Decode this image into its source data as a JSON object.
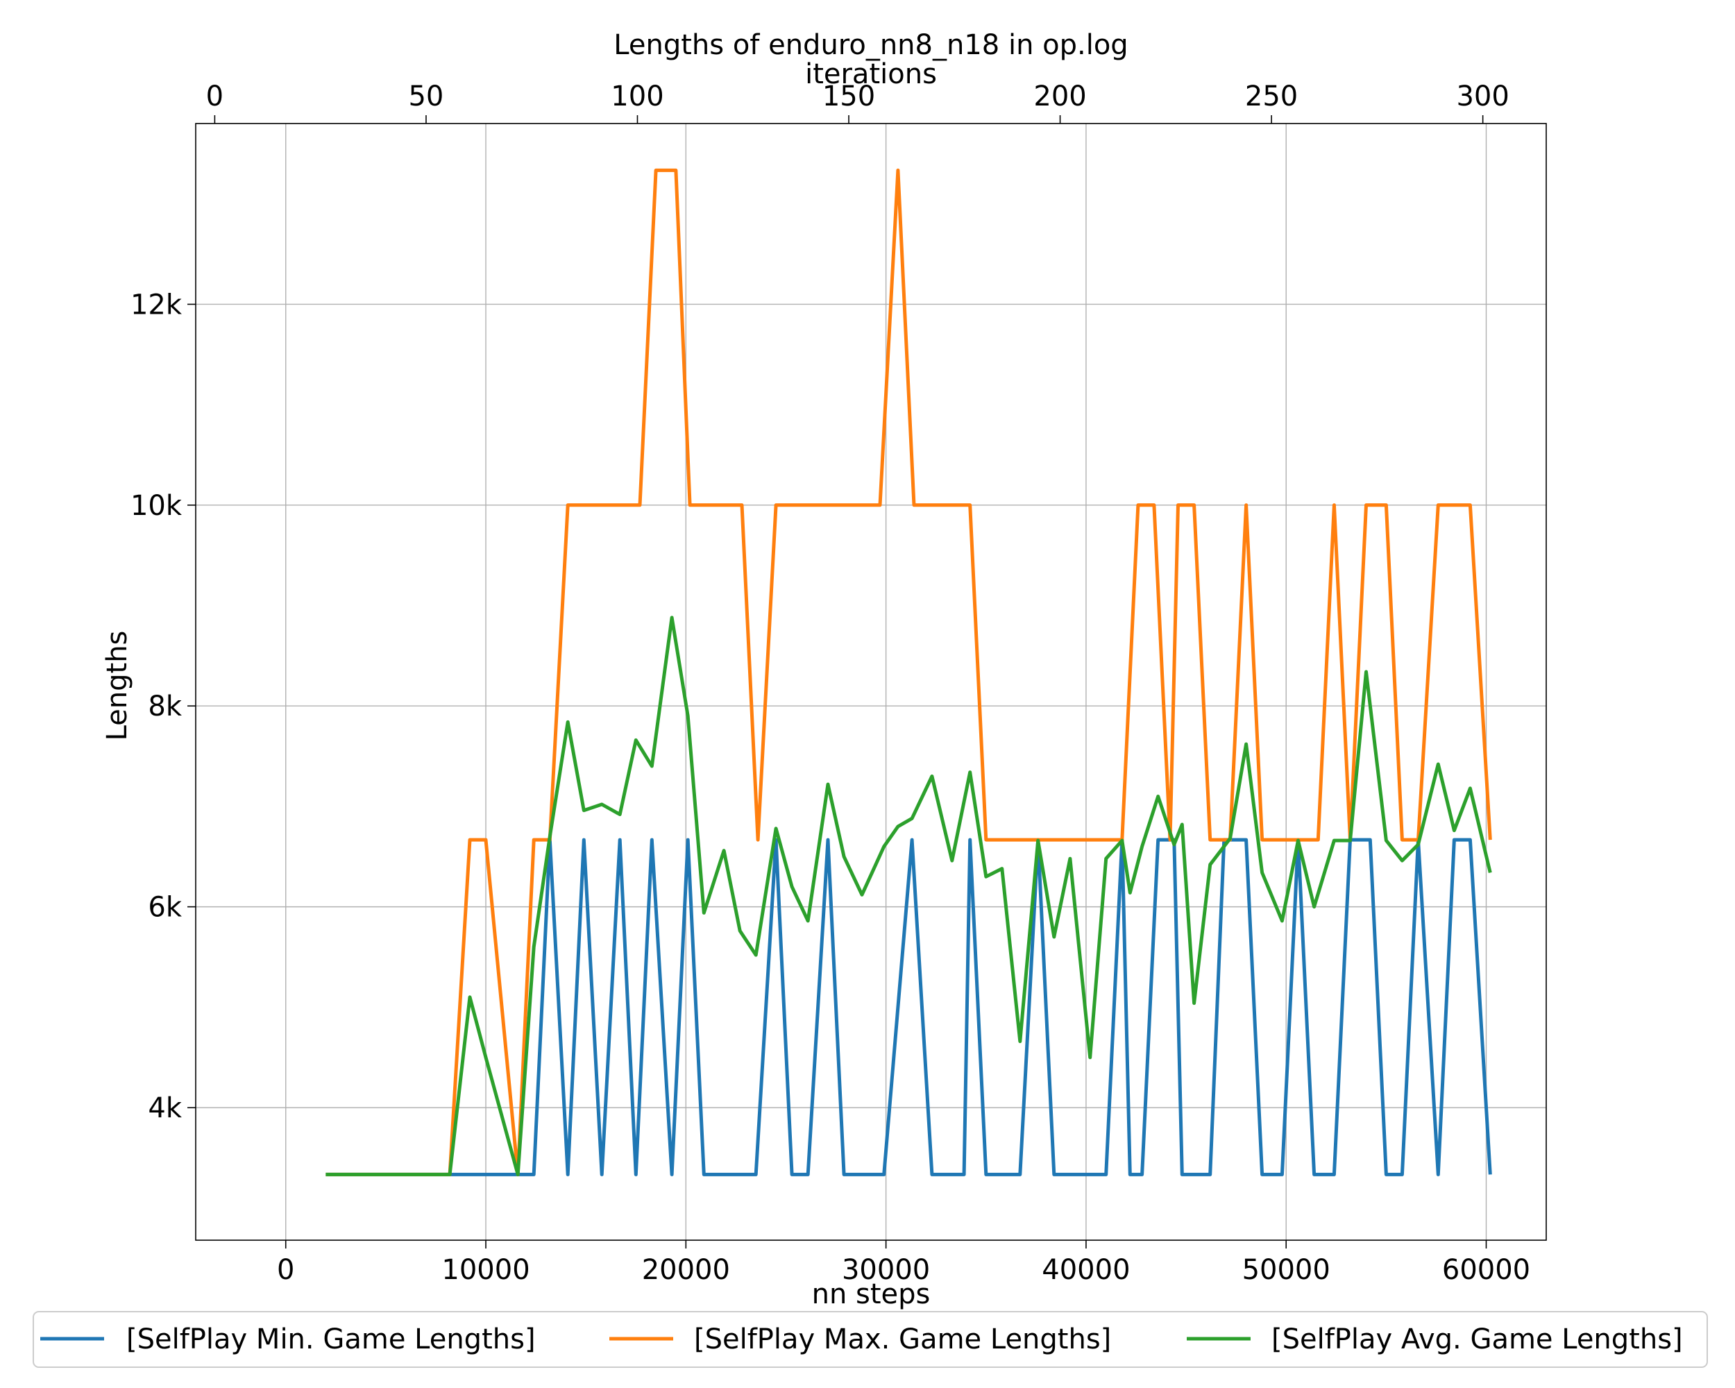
{
  "chart_data": {
    "type": "line",
    "title": "Lengths of enduro_nn8_n18 in op.log",
    "xlabel": "nn steps",
    "ylabel": "Lengths",
    "x2label": "iterations",
    "xlim": [
      -4500,
      63000
    ],
    "ylim": [
      2680,
      13800
    ],
    "x2lim": [
      -4.5,
      315
    ],
    "xticks": [
      0,
      10000,
      20000,
      30000,
      40000,
      50000,
      60000
    ],
    "xtick_labels": [
      "0",
      "10000",
      "20000",
      "30000",
      "40000",
      "50000",
      "60000"
    ],
    "x2ticks": [
      0,
      50,
      100,
      150,
      200,
      250,
      300
    ],
    "x2tick_labels": [
      "0",
      "50",
      "100",
      "150",
      "200",
      "250",
      "300"
    ],
    "yticks": [
      4000,
      6000,
      8000,
      10000,
      12000
    ],
    "ytick_labels": [
      "4k",
      "6k",
      "8k",
      "10k",
      "12k"
    ],
    "grid": true,
    "legend_position": "bottom",
    "series": [
      {
        "name": "[SelfPlay Min. Game Lengths]",
        "color": "#1f77b4",
        "points": [
          [
            2000,
            3334
          ],
          [
            8200,
            3334
          ],
          [
            9200,
            3334
          ],
          [
            10000,
            3334
          ],
          [
            11600,
            3334
          ],
          [
            12400,
            3334
          ],
          [
            13200,
            6667
          ],
          [
            14100,
            3334
          ],
          [
            14900,
            6667
          ],
          [
            15800,
            3334
          ],
          [
            16700,
            6667
          ],
          [
            17500,
            3334
          ],
          [
            18300,
            6667
          ],
          [
            19300,
            3334
          ],
          [
            20100,
            6667
          ],
          [
            20900,
            3334
          ],
          [
            22700,
            3334
          ],
          [
            23500,
            3334
          ],
          [
            24500,
            6667
          ],
          [
            25300,
            3334
          ],
          [
            26100,
            3334
          ],
          [
            27100,
            6667
          ],
          [
            27900,
            3334
          ],
          [
            29900,
            3334
          ],
          [
            31300,
            6667
          ],
          [
            32300,
            3334
          ],
          [
            33900,
            3334
          ],
          [
            34200,
            6667
          ],
          [
            35000,
            3334
          ],
          [
            36700,
            3334
          ],
          [
            37600,
            6667
          ],
          [
            38400,
            3334
          ],
          [
            41000,
            3334
          ],
          [
            41800,
            6667
          ],
          [
            42200,
            3334
          ],
          [
            42800,
            3334
          ],
          [
            43600,
            6667
          ],
          [
            44400,
            6667
          ],
          [
            44800,
            3334
          ],
          [
            46200,
            3334
          ],
          [
            46900,
            6667
          ],
          [
            48000,
            6667
          ],
          [
            48800,
            3334
          ],
          [
            49800,
            3334
          ],
          [
            50600,
            6667
          ],
          [
            51400,
            3334
          ],
          [
            52400,
            3334
          ],
          [
            53200,
            6667
          ],
          [
            54200,
            6667
          ],
          [
            55000,
            3334
          ],
          [
            55800,
            3334
          ],
          [
            56600,
            6667
          ],
          [
            57600,
            3334
          ],
          [
            58400,
            6667
          ],
          [
            59200,
            6667
          ],
          [
            60200,
            3334
          ]
        ]
      },
      {
        "name": "[SelfPlay Max. Game Lengths]",
        "color": "#ff7f0e",
        "points": [
          [
            2000,
            3334
          ],
          [
            8200,
            3334
          ],
          [
            9200,
            6667
          ],
          [
            10000,
            6667
          ],
          [
            11600,
            3334
          ],
          [
            12400,
            6667
          ],
          [
            13200,
            6667
          ],
          [
            14100,
            10000
          ],
          [
            17700,
            10000
          ],
          [
            18500,
            13334
          ],
          [
            19500,
            13334
          ],
          [
            20200,
            10000
          ],
          [
            22800,
            10000
          ],
          [
            23600,
            6667
          ],
          [
            24500,
            10000
          ],
          [
            29700,
            10000
          ],
          [
            30600,
            13334
          ],
          [
            31400,
            10000
          ],
          [
            34200,
            10000
          ],
          [
            35000,
            6667
          ],
          [
            41800,
            6667
          ],
          [
            42600,
            10000
          ],
          [
            43400,
            10000
          ],
          [
            44200,
            6667
          ],
          [
            44600,
            10000
          ],
          [
            45400,
            10000
          ],
          [
            46200,
            6667
          ],
          [
            47200,
            6667
          ],
          [
            48000,
            10000
          ],
          [
            48800,
            6667
          ],
          [
            51600,
            6667
          ],
          [
            52400,
            10000
          ],
          [
            53200,
            6667
          ],
          [
            54000,
            10000
          ],
          [
            55000,
            10000
          ],
          [
            55800,
            6667
          ],
          [
            56600,
            6667
          ],
          [
            57600,
            10000
          ],
          [
            59200,
            10000
          ],
          [
            60200,
            6667
          ]
        ]
      },
      {
        "name": "[SelfPlay Avg. Game Lengths]",
        "color": "#2ca02c",
        "points": [
          [
            2000,
            3334
          ],
          [
            8200,
            3334
          ],
          [
            9200,
            5100
          ],
          [
            10000,
            4500
          ],
          [
            11600,
            3334
          ],
          [
            12400,
            5600
          ],
          [
            13200,
            6700
          ],
          [
            14100,
            7840
          ],
          [
            14900,
            6960
          ],
          [
            15800,
            7020
          ],
          [
            16700,
            6920
          ],
          [
            17500,
            7660
          ],
          [
            18300,
            7400
          ],
          [
            19300,
            8880
          ],
          [
            20100,
            7900
          ],
          [
            20900,
            5940
          ],
          [
            21900,
            6560
          ],
          [
            22700,
            5760
          ],
          [
            23500,
            5520
          ],
          [
            24500,
            6780
          ],
          [
            25300,
            6200
          ],
          [
            26100,
            5860
          ],
          [
            27100,
            7220
          ],
          [
            27900,
            6500
          ],
          [
            28800,
            6120
          ],
          [
            29900,
            6600
          ],
          [
            30600,
            6800
          ],
          [
            31300,
            6880
          ],
          [
            32300,
            7300
          ],
          [
            33300,
            6460
          ],
          [
            34200,
            7340
          ],
          [
            35000,
            6300
          ],
          [
            35800,
            6380
          ],
          [
            36700,
            4660
          ],
          [
            37600,
            6660
          ],
          [
            38400,
            5700
          ],
          [
            39200,
            6480
          ],
          [
            40200,
            4500
          ],
          [
            41000,
            6480
          ],
          [
            41800,
            6660
          ],
          [
            42200,
            6140
          ],
          [
            42800,
            6600
          ],
          [
            43600,
            7100
          ],
          [
            44400,
            6620
          ],
          [
            44800,
            6820
          ],
          [
            45400,
            5040
          ],
          [
            46200,
            6420
          ],
          [
            47200,
            6680
          ],
          [
            48000,
            7620
          ],
          [
            48800,
            6340
          ],
          [
            49800,
            5860
          ],
          [
            50600,
            6660
          ],
          [
            51400,
            6000
          ],
          [
            52400,
            6660
          ],
          [
            53200,
            6660
          ],
          [
            54000,
            8340
          ],
          [
            55000,
            6660
          ],
          [
            55800,
            6460
          ],
          [
            56600,
            6620
          ],
          [
            57600,
            7420
          ],
          [
            58400,
            6760
          ],
          [
            59200,
            7180
          ],
          [
            60200,
            6340
          ]
        ]
      }
    ]
  }
}
